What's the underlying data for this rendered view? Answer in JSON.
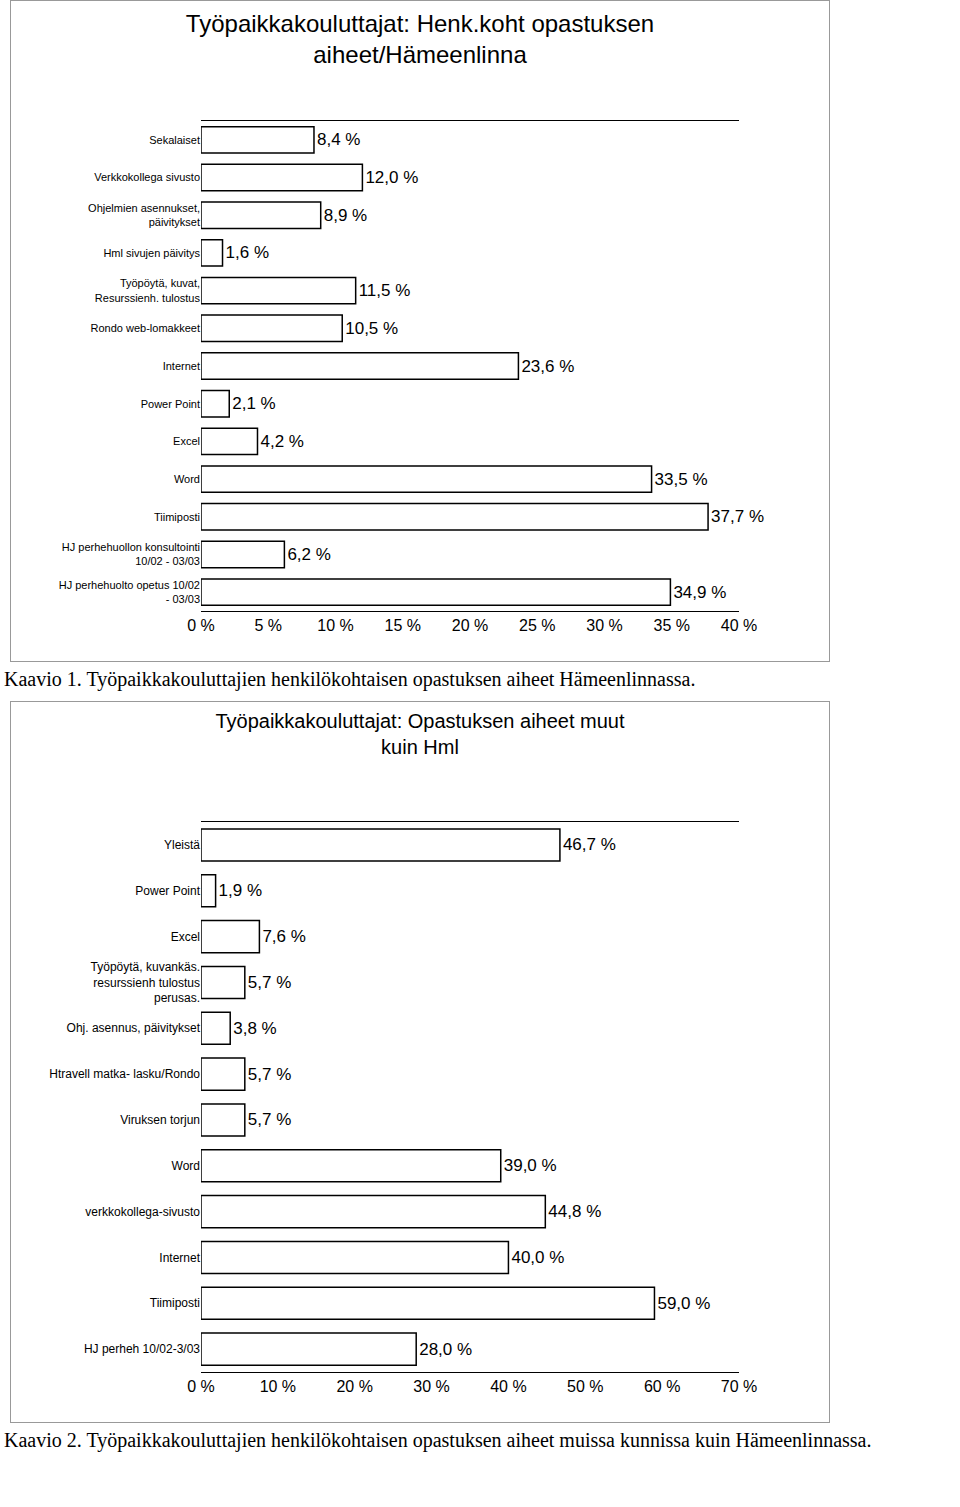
{
  "chart_data": [
    {
      "type": "bar",
      "orientation": "horizontal",
      "title": "Työpaikkakouluttajat: Henk.koht opastuksen\naiheet/Hämeenlinna",
      "caption": "Kaavio 1. Työpaikkakouluttajien henkilökohtaisen opastuksen aiheet Hämeenlinnassa.",
      "categories": [
        "Sekalaiset",
        "Verkkokollega sivusto",
        "Ohjelmien asennukset, päivitykset",
        "Hml sivujen päivitys",
        "Työpöytä, kuvat, Resurssienh. tulostus",
        "Rondo web-lomakkeet",
        "Internet",
        "Power Point",
        "Excel",
        "Word",
        "Tiimiposti",
        "HJ perhehuollon konsultointi 10/02 - 03/03",
        "HJ perhehuolto opetus 10/02 - 03/03"
      ],
      "values": [
        8.4,
        12.0,
        8.9,
        1.6,
        11.5,
        10.5,
        23.6,
        2.1,
        4.2,
        33.5,
        37.7,
        6.2,
        34.9
      ],
      "value_labels": [
        "8,4 %",
        "12,0 %",
        "8,9 %",
        "1,6 %",
        "11,5 %",
        "10,5 %",
        "23,6 %",
        "2,1 %",
        "4,2 %",
        "33,5 %",
        "37,7 %",
        "6,2 %",
        "34,9 %"
      ],
      "color": "#ffffff",
      "data_labels": true,
      "grid": false,
      "xlim": [
        0,
        40
      ],
      "xticks": [
        {
          "value": 0,
          "label": "0 %"
        },
        {
          "value": 5,
          "label": "5 %"
        },
        {
          "value": 10,
          "label": "10 %"
        },
        {
          "value": 15,
          "label": "15 %"
        },
        {
          "value": 20,
          "label": "20 %"
        },
        {
          "value": 25,
          "label": "25 %"
        },
        {
          "value": 30,
          "label": "30 %"
        },
        {
          "value": 35,
          "label": "35 %"
        },
        {
          "value": 40,
          "label": "40 %"
        }
      ]
    },
    {
      "type": "bar",
      "orientation": "horizontal",
      "title": "Työpaikkakouluttajat: Opastuksen aiheet muut\nkuin Hml",
      "caption": "Kaavio 2. Työpaikkakouluttajien henkilökohtaisen opastuksen aiheet muissa kunnissa kuin Hämeenlinnassa.",
      "categories": [
        "Yleistä",
        "Power Point",
        "Excel",
        "Työpöytä, kuvankäs. resurssienh tulostus perusas.",
        "Ohj. asennus, päivitykset",
        "Htravell matka- lasku/Rondo",
        "Viruksen torjun",
        "Word",
        "verkkokollega-sivusto",
        "Internet",
        "Tiimiposti",
        "HJ perheh 10/02-3/03"
      ],
      "values": [
        46.7,
        1.9,
        7.6,
        5.7,
        3.8,
        5.7,
        5.7,
        39.0,
        44.8,
        40.0,
        59.0,
        28.0
      ],
      "value_labels": [
        "46,7 %",
        "1,9 %",
        "7,6 %",
        "5,7 %",
        "3,8 %",
        "5,7 %",
        "5,7 %",
        "39,0 %",
        "44,8 %",
        "40,0 %",
        "59,0 %",
        "28,0 %"
      ],
      "color": "#ffffff",
      "data_labels": true,
      "grid": false,
      "xlim": [
        0,
        70
      ],
      "xticks": [
        {
          "value": 0,
          "label": "0 %"
        },
        {
          "value": 10,
          "label": "10 %"
        },
        {
          "value": 20,
          "label": "20 %"
        },
        {
          "value": 30,
          "label": "30 %"
        },
        {
          "value": 40,
          "label": "40 %"
        },
        {
          "value": 50,
          "label": "50 %"
        },
        {
          "value": 60,
          "label": "60 %"
        },
        {
          "value": 70,
          "label": "70 %"
        }
      ]
    }
  ]
}
